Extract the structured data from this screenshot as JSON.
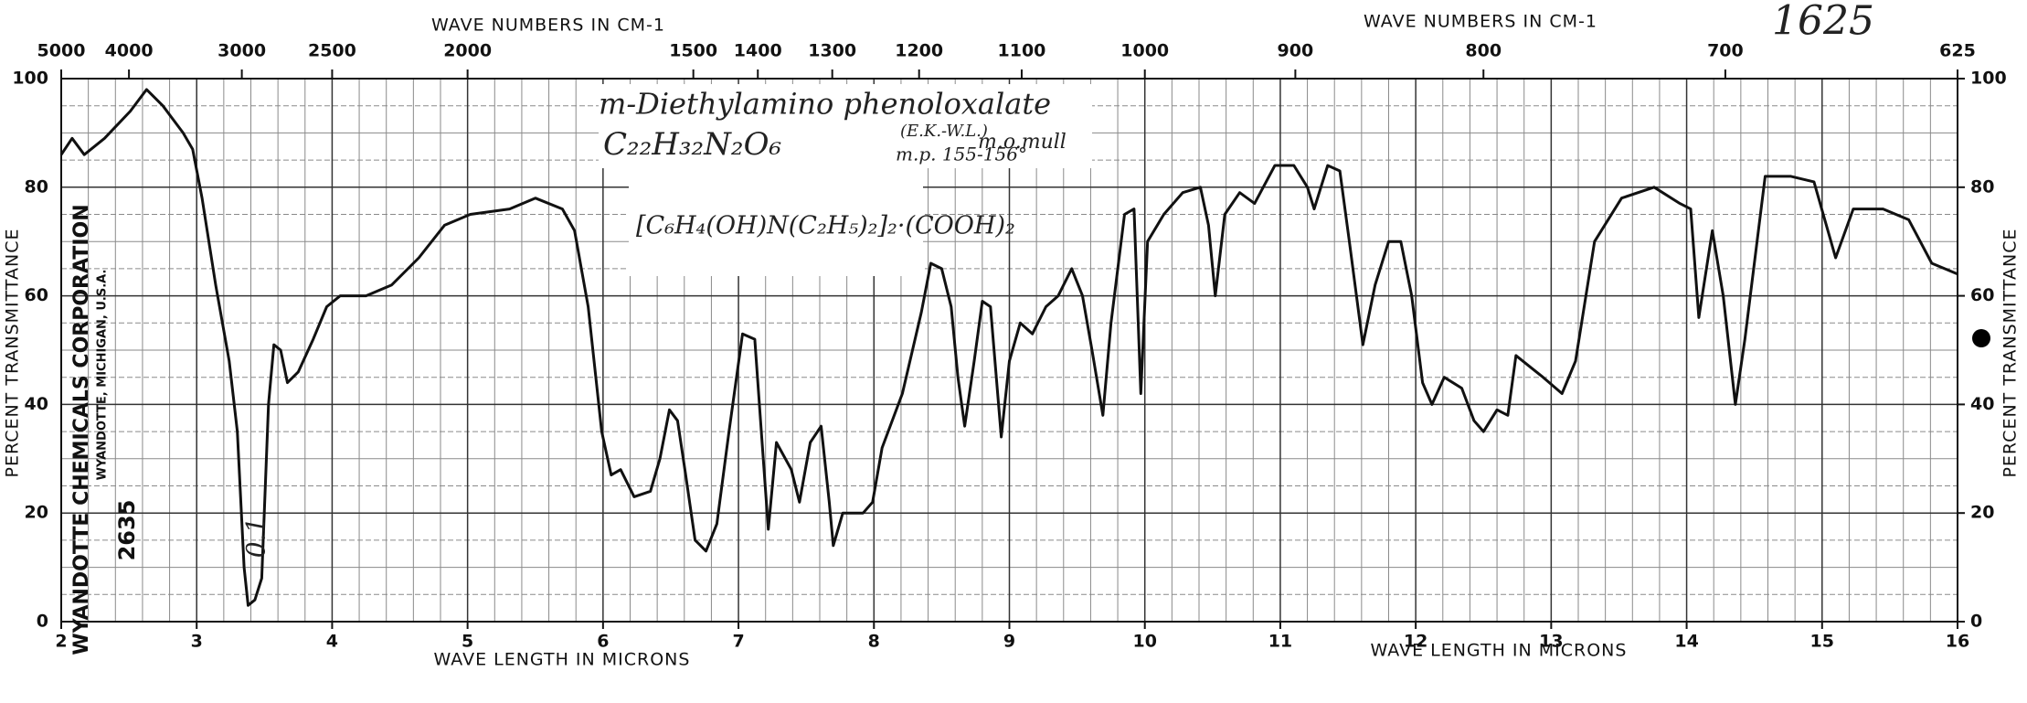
{
  "chart_data": {
    "type": "line",
    "x_label": "WAVE LENGTH IN MICRONS",
    "x_label_right": "WAVE LENGTH IN MICRONS",
    "x2_label": "WAVE NUMBERS IN CM-1",
    "x2_label_right": "WAVE NUMBERS IN CM-1",
    "y_label": "PERCENT TRANSMITTANCE",
    "y2_label": "PERCENT TRANSMITTANCE",
    "spectrum_number": "1625",
    "annotations": {
      "compound": "m-Diethylamino phenoloxalate",
      "formula": "C₂₂H₃₂N₂O₆",
      "analyst": "(E.K.-W.L.)",
      "melting_point": "m.p. 155-156°",
      "medium": "m.o.mull",
      "structure": "[C₆H₄(OH)N(C₂H₅)₂]₂·(COOH)₂",
      "company": "WYANDOTTE CHEMICALS CORPORATION",
      "location": "WYANDOTTE, MICHIGAN, U.S.A.",
      "serial": "2635",
      "thickness": "0.1"
    },
    "xlim": [
      2,
      16
    ],
    "xticks": [
      2,
      3,
      4,
      5,
      6,
      7,
      8,
      9,
      10,
      11,
      12,
      13,
      14,
      15,
      16
    ],
    "x2scale": "reciprocal",
    "x2ticks": [
      5000,
      4000,
      3000,
      2500,
      2000,
      1500,
      1400,
      1300,
      1200,
      1100,
      1000,
      900,
      800,
      700,
      625
    ],
    "ylim": [
      0,
      100
    ],
    "yticks": [
      0,
      20,
      40,
      60,
      80,
      100
    ],
    "y2lim": [
      0,
      100
    ],
    "y2ticks": [
      0,
      20,
      40,
      60,
      80,
      100
    ],
    "grid": true,
    "color": "#111111",
    "x": [
      2.0,
      2.08,
      2.17,
      2.32,
      2.51,
      2.63,
      2.75,
      2.9,
      2.97,
      3.04,
      3.14,
      3.24,
      3.3,
      3.35,
      3.38,
      3.43,
      3.48,
      3.53,
      3.57,
      3.62,
      3.67,
      3.75,
      3.86,
      3.96,
      4.06,
      4.25,
      4.44,
      4.64,
      4.83,
      5.02,
      5.31,
      5.5,
      5.7,
      5.79,
      5.89,
      5.99,
      6.06,
      6.13,
      6.23,
      6.35,
      6.42,
      6.49,
      6.55,
      6.61,
      6.68,
      6.76,
      6.84,
      6.93,
      7.03,
      7.12,
      7.16,
      7.22,
      7.28,
      7.39,
      7.45,
      7.53,
      7.61,
      7.67,
      7.7,
      7.77,
      7.92,
      7.99,
      8.06,
      8.21,
      8.35,
      8.42,
      8.5,
      8.57,
      8.62,
      8.67,
      8.74,
      8.8,
      8.86,
      8.9,
      8.94,
      9.0,
      9.08,
      9.17,
      9.27,
      9.36,
      9.46,
      9.54,
      9.61,
      9.69,
      9.75,
      9.85,
      9.92,
      9.97,
      10.02,
      10.14,
      10.28,
      10.41,
      10.47,
      10.52,
      10.59,
      10.7,
      10.81,
      10.96,
      11.1,
      11.2,
      11.25,
      11.35,
      11.44,
      11.51,
      11.61,
      11.7,
      11.8,
      11.89,
      11.97,
      12.05,
      12.12,
      12.21,
      12.34,
      12.43,
      12.5,
      12.6,
      12.68,
      12.74,
      12.84,
      12.94,
      13.08,
      13.18,
      13.32,
      13.52,
      13.76,
      13.95,
      14.03,
      14.09,
      14.19,
      14.27,
      14.36,
      14.43,
      14.58,
      14.77,
      14.94,
      15.1,
      15.23,
      15.45,
      15.64,
      15.81,
      16.0
    ],
    "values": [
      86,
      89,
      86,
      89,
      94,
      98,
      95,
      90,
      87,
      78,
      62,
      48,
      35,
      10,
      3,
      4,
      8,
      40,
      51,
      50,
      44,
      46,
      52,
      58,
      60,
      60,
      62,
      67,
      73,
      75,
      76,
      78,
      76,
      72,
      58,
      35,
      27,
      28,
      23,
      24,
      30,
      39,
      37,
      27,
      15,
      13,
      18,
      35,
      53,
      52,
      38,
      17,
      33,
      28,
      22,
      33,
      36,
      22,
      14,
      20,
      20,
      22,
      32,
      42,
      57,
      66,
      65,
      58,
      45,
      36,
      48,
      59,
      58,
      46,
      34,
      48,
      55,
      53,
      58,
      60,
      65,
      60,
      50,
      38,
      55,
      75,
      76,
      42,
      70,
      75,
      79,
      80,
      73,
      60,
      75,
      79,
      77,
      84,
      84,
      80,
      76,
      84,
      83,
      70,
      51,
      62,
      70,
      70,
      60,
      44,
      40,
      45,
      43,
      37,
      35,
      39,
      38,
      49,
      47,
      45,
      42,
      48,
      70,
      78,
      80,
      77,
      76,
      56,
      72,
      60,
      40,
      52,
      82,
      82,
      81,
      67,
      76,
      76,
      74,
      66,
      64
    ]
  }
}
